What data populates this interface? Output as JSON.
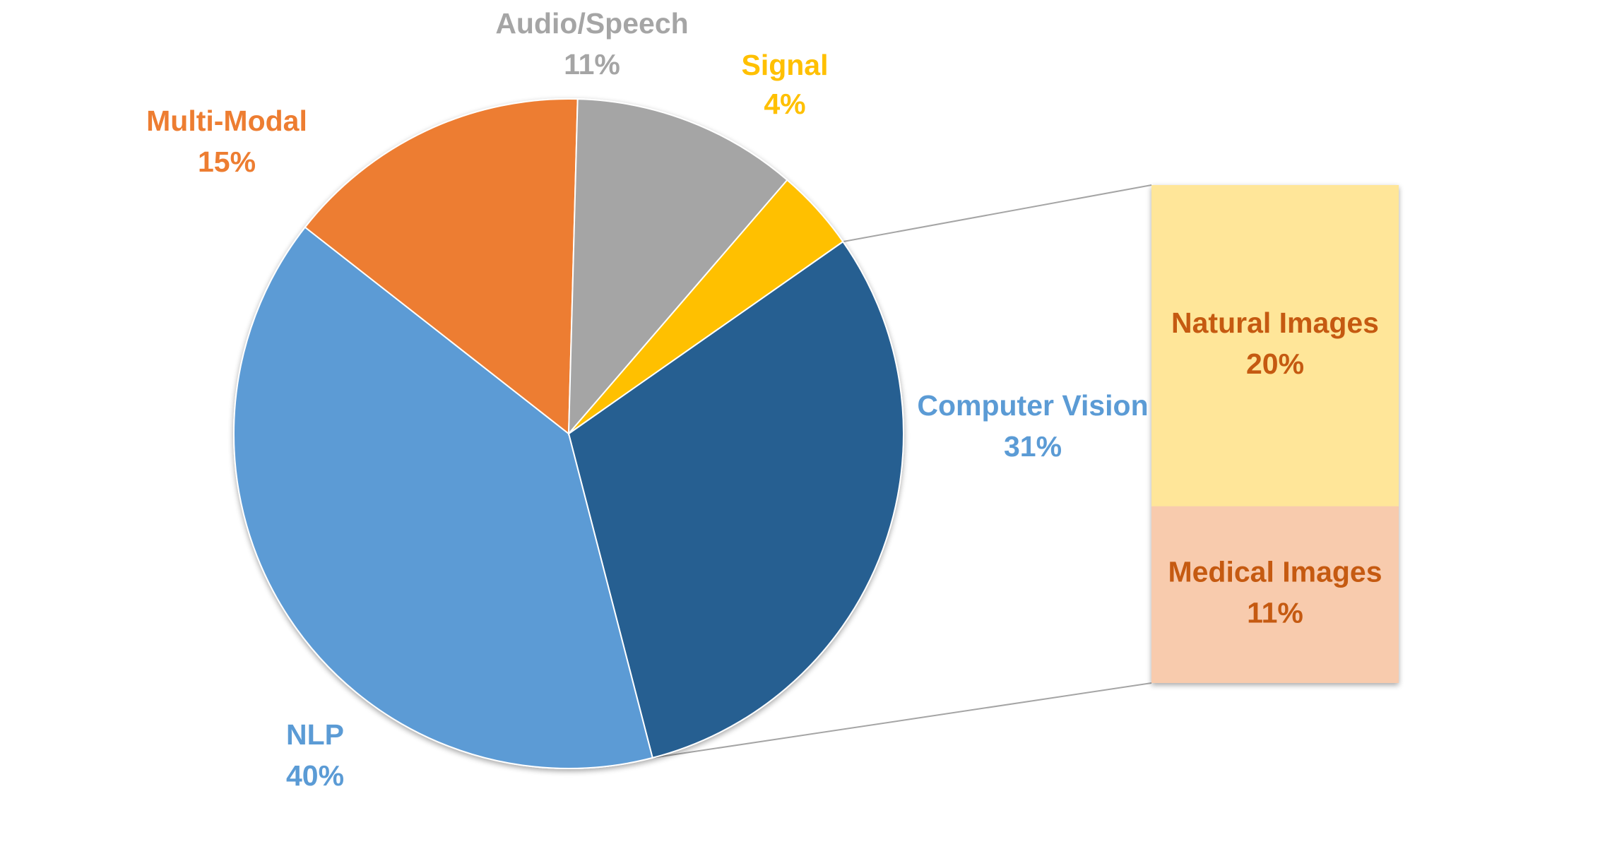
{
  "chart_data": {
    "type": "bar-of-pie",
    "pie": [
      {
        "label": "Computer Vision",
        "value": 31,
        "value_label": "31%",
        "color": "#255E91",
        "label_color": "#5B9BD5"
      },
      {
        "label": "NLP",
        "value": 40,
        "value_label": "40%",
        "color": "#5B9BD5",
        "label_color": "#5B9BD5"
      },
      {
        "label": "Multi-Modal",
        "value": 15,
        "value_label": "15%",
        "color": "#ED7D31",
        "label_color": "#ED7D31"
      },
      {
        "label": "Audio/Speech",
        "value": 11,
        "value_label": "11%",
        "color": "#A5A5A5",
        "label_color": "#A5A5A5"
      },
      {
        "label": "Signal",
        "value": 4,
        "value_label": "4%",
        "color": "#FFC000",
        "label_color": "#FFC000"
      }
    ],
    "breakdown_of": "Computer Vision",
    "bar": [
      {
        "label": "Natural Images",
        "value": 20,
        "value_label": "20%",
        "color": "#FFE699",
        "label_color": "#C55A11"
      },
      {
        "label": "Medical Images",
        "value": 11,
        "value_label": "11%",
        "color": "#F8CBAD",
        "label_color": "#C55A11"
      }
    ],
    "connector_color": "#A5A5A5"
  }
}
